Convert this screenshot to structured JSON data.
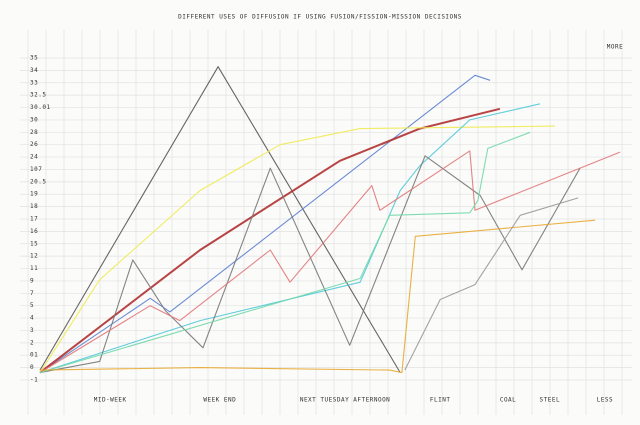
{
  "chart_data": {
    "type": "line",
    "title": "DIFFERENT USES OF DIFFUSION IF USING FUSION/FISSION-MISSION DECISIONS",
    "top_label": "MORE",
    "xlim": [
      0,
      100
    ],
    "ylim": [
      0,
      26
    ],
    "yticks": [
      {
        "value": 0,
        "label": "-1"
      },
      {
        "value": 1,
        "label": "0"
      },
      {
        "value": 2,
        "label": "01"
      },
      {
        "value": 3,
        "label": "2"
      },
      {
        "value": 4,
        "label": "3"
      },
      {
        "value": 5,
        "label": "4"
      },
      {
        "value": 6,
        "label": "5"
      },
      {
        "value": 7,
        "label": "7"
      },
      {
        "value": 8,
        "label": "9"
      },
      {
        "value": 9,
        "label": "11"
      },
      {
        "value": 10,
        "label": "12"
      },
      {
        "value": 11,
        "label": "15"
      },
      {
        "value": 12,
        "label": "16"
      },
      {
        "value": 13,
        "label": "17"
      },
      {
        "value": 14,
        "label": "18"
      },
      {
        "value": 15,
        "label": "19"
      },
      {
        "value": 16,
        "label": "20.5"
      },
      {
        "value": 17,
        "label": "107"
      },
      {
        "value": 18,
        "label": "24"
      },
      {
        "value": 19,
        "label": "26"
      },
      {
        "value": 20,
        "label": "28"
      },
      {
        "value": 21,
        "label": "30"
      },
      {
        "value": 22,
        "label": "30.01"
      },
      {
        "value": 23,
        "label": "32.5"
      },
      {
        "value": 24,
        "label": "33"
      },
      {
        "value": 25,
        "label": "34"
      },
      {
        "value": 26,
        "label": "35"
      }
    ],
    "x_labels": [
      {
        "x": 12.1,
        "label": "MID-WEEK"
      },
      {
        "x": 31,
        "label": "WEEK END"
      },
      {
        "x": 52.6,
        "label": "NEXT TUESDAY AFTERNOON"
      },
      {
        "x": 69,
        "label": "FLINT"
      },
      {
        "x": 80.7,
        "label": "COAL"
      },
      {
        "x": 87.9,
        "label": "STEEL"
      },
      {
        "x": 97.4,
        "label": "LESS"
      }
    ],
    "grid": true,
    "series": [
      {
        "color": "#555555",
        "x": [
          0,
          30.7,
          62.1
        ],
        "values": [
          0.8,
          25.3,
          0.6
        ]
      },
      {
        "color": "#5a7fd0",
        "x": [
          0,
          19,
          22.4,
          75,
          77.6
        ],
        "values": [
          0.6,
          6.6,
          5.5,
          24.6,
          24.2
        ]
      },
      {
        "color": "#b03030",
        "x": [
          0,
          27.6,
          51.7,
          65.5,
          79.3
        ],
        "values": [
          0.6,
          10.5,
          17.7,
          20.3,
          21.9
        ]
      },
      {
        "color": "#f0ea50",
        "x": [
          0,
          10.3,
          27.6,
          41.4,
          55.2,
          88.8
        ],
        "values": [
          0.6,
          8.1,
          15.3,
          19,
          20.3,
          20.5
        ]
      },
      {
        "color": "#50c8d8",
        "x": [
          0,
          27.6,
          55.2,
          62.1,
          65.5,
          74.1,
          86.2
        ],
        "values": [
          0.6,
          4.8,
          7.9,
          15.3,
          17.3,
          21,
          22.3
        ]
      },
      {
        "color": "#777777",
        "x": [
          0,
          10.3,
          16,
          21.6,
          28.1,
          39.7,
          53.4,
          66.4,
          75.9,
          83.1,
          93.1
        ],
        "values": [
          0.6,
          1.5,
          9.7,
          5.6,
          2.6,
          17.1,
          2.8,
          18.1,
          14.9,
          8.9,
          17.1
        ]
      },
      {
        "color": "#e07878",
        "x": [
          0,
          19,
          24.1,
          39.7,
          43.1,
          57.2,
          58.6,
          74.1,
          75,
          100
        ],
        "values": [
          0.6,
          6,
          4.8,
          10.5,
          7.9,
          15.7,
          13.7,
          18.5,
          13.7,
          18.4
        ]
      },
      {
        "color": "#70d8a8",
        "x": [
          0,
          55.2,
          60.3,
          74.1,
          75.5,
          77.2,
          84.5
        ],
        "values": [
          0.6,
          8.2,
          13.3,
          13.5,
          14.5,
          18.7,
          20
        ]
      },
      {
        "color": "#e8a830",
        "x": [
          0,
          27.6,
          60.3,
          62.4,
          64.7,
          95.7
        ],
        "values": [
          0.8,
          1,
          0.8,
          0.6,
          11.6,
          12.9
        ]
      },
      {
        "color": "#999999",
        "x": [
          62.9,
          69,
          75,
          82.8,
          92.8
        ],
        "values": [
          0.8,
          6.5,
          7.7,
          13.3,
          14.7
        ]
      }
    ]
  }
}
